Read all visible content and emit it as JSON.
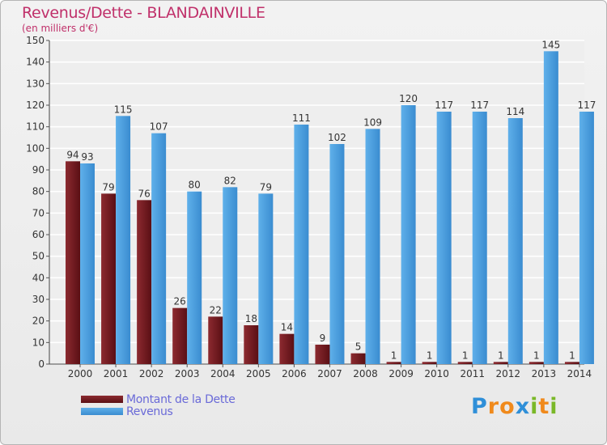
{
  "chart_data": {
    "type": "bar",
    "title": "Revenus/Dette - BLANDAINVILLE",
    "subtitle": "(en milliers d'€)",
    "categories": [
      "2000",
      "2001",
      "2002",
      "2003",
      "2004",
      "2005",
      "2006",
      "2007",
      "2008",
      "2009",
      "2010",
      "2011",
      "2012",
      "2013",
      "2014"
    ],
    "series": [
      {
        "name": "Montant de la Dette",
        "color": "#7a1f24",
        "values": [
          94,
          79,
          76,
          26,
          22,
          18,
          14,
          9,
          5,
          1,
          1,
          1,
          1,
          1,
          1
        ]
      },
      {
        "name": "Revenus",
        "color": "#4fa1e0",
        "values": [
          93,
          115,
          107,
          80,
          82,
          79,
          111,
          102,
          109,
          120,
          117,
          117,
          114,
          145,
          117
        ]
      }
    ],
    "ylim": [
      0,
      150
    ],
    "yticks": [
      0,
      10,
      20,
      30,
      40,
      50,
      60,
      70,
      80,
      90,
      100,
      110,
      120,
      130,
      140,
      150
    ],
    "grid": true,
    "legend": "bottom-left"
  },
  "logo": {
    "text": "Proxiti",
    "letters": [
      "P",
      "r",
      "o",
      "x",
      "i",
      "t",
      "i"
    ],
    "colors": [
      "#2f8fd8",
      "#f08a1c",
      "#f08a1c",
      "#2f8fd8",
      "#7ab828",
      "#f08a1c",
      "#7ab828"
    ]
  }
}
